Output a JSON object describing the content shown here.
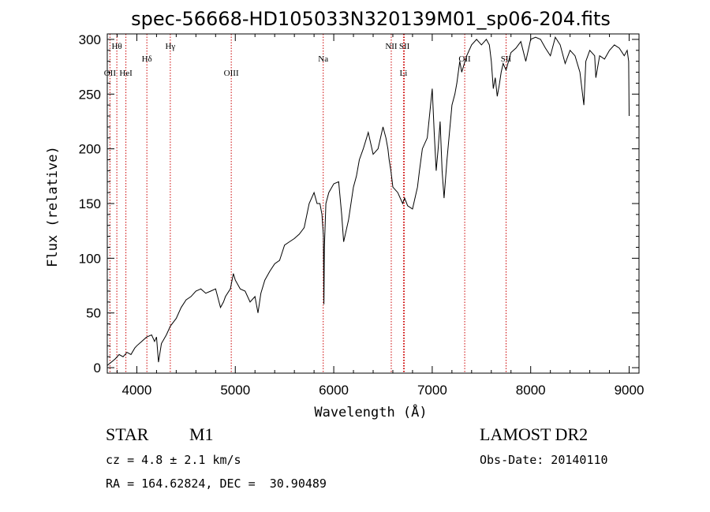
{
  "chart_data": {
    "type": "line",
    "title": "spec-56668-HD105033N320139M01_sp06-204.fits",
    "xlabel": "Wavelength (Å)",
    "ylabel": "Flux (relative)",
    "xlim": [
      3700,
      9100
    ],
    "ylim": [
      -5,
      305
    ],
    "xticks": [
      4000,
      5000,
      6000,
      7000,
      8000,
      9000
    ],
    "yticks": [
      0,
      50,
      100,
      150,
      200,
      250,
      300
    ],
    "grid": false,
    "legend": "none",
    "series": [
      {
        "x": [
          3700,
          3740,
          3780,
          3820,
          3860,
          3900,
          3940,
          3980,
          4000,
          4050,
          4100,
          4150,
          4180,
          4200,
          4220,
          4250,
          4300,
          4340,
          4400,
          4450,
          4500,
          4550,
          4600,
          4650,
          4700,
          4750,
          4800,
          4850,
          4880,
          4900,
          4950,
          4980,
          5000,
          5050,
          5100,
          5150,
          5200,
          5230,
          5260,
          5300,
          5350,
          5400,
          5450,
          5500,
          5550,
          5600,
          5650,
          5700,
          5750,
          5800,
          5830,
          5860,
          5880,
          5895,
          5900,
          5905,
          5920,
          5950,
          6000,
          6050,
          6080,
          6100,
          6150,
          6200,
          6230,
          6260,
          6300,
          6350,
          6400,
          6450,
          6500,
          6530,
          6550,
          6563,
          6580,
          6600,
          6650,
          6700,
          6720,
          6750,
          6800,
          6850,
          6870,
          6900,
          6950,
          7000,
          7020,
          7040,
          7060,
          7080,
          7100,
          7120,
          7150,
          7200,
          7230,
          7250,
          7280,
          7300,
          7350,
          7400,
          7450,
          7500,
          7550,
          7580,
          7600,
          7620,
          7640,
          7660,
          7680,
          7700,
          7720,
          7750,
          7800,
          7850,
          7900,
          7950,
          8000,
          8050,
          8100,
          8150,
          8200,
          8250,
          8300,
          8350,
          8400,
          8450,
          8500,
          8540,
          8560,
          8600,
          8650,
          8662,
          8700,
          8750,
          8800,
          8850,
          8900,
          8950,
          8980,
          8995,
          9000
        ],
        "values": [
          2,
          5,
          8,
          12,
          10,
          14,
          12,
          18,
          20,
          24,
          28,
          30,
          24,
          28,
          5,
          22,
          30,
          38,
          45,
          55,
          62,
          65,
          70,
          72,
          68,
          70,
          72,
          55,
          60,
          65,
          72,
          86,
          80,
          72,
          70,
          60,
          65,
          50,
          68,
          80,
          88,
          95,
          98,
          112,
          115,
          118,
          122,
          128,
          150,
          160,
          150,
          150,
          140,
          120,
          58,
          110,
          150,
          160,
          168,
          170,
          140,
          115,
          135,
          165,
          175,
          190,
          200,
          215,
          195,
          200,
          220,
          210,
          200,
          190,
          180,
          165,
          160,
          150,
          155,
          148,
          145,
          165,
          180,
          200,
          210,
          255,
          215,
          180,
          200,
          225,
          180,
          155,
          190,
          240,
          250,
          260,
          280,
          270,
          285,
          295,
          300,
          295,
          300,
          295,
          280,
          255,
          265,
          248,
          258,
          270,
          278,
          272,
          288,
          292,
          298,
          280,
          300,
          302,
          300,
          292,
          285,
          302,
          295,
          278,
          290,
          285,
          270,
          240,
          280,
          290,
          285,
          265,
          285,
          282,
          290,
          295,
          292,
          285,
          290,
          280,
          230
        ]
      }
    ],
    "line_markers": [
      {
        "label": "Hθ",
        "x": 3797,
        "row": 1
      },
      {
        "label": "OII",
        "x": 3727,
        "row": 3
      },
      {
        "label": "HeI",
        "x": 3889,
        "row": 3
      },
      {
        "label": "Hδ",
        "x": 4102,
        "row": 2
      },
      {
        "label": "Hγ",
        "x": 4340,
        "row": 1
      },
      {
        "label": "OIII",
        "x": 4959,
        "row": 3
      },
      {
        "label": "Na",
        "x": 5893,
        "row": 2
      },
      {
        "label": "NII",
        "x": 6584,
        "row": 1
      },
      {
        "label": "SII",
        "x": 6717,
        "row": 1
      },
      {
        "label": "Li",
        "x": 6708,
        "row": 3
      },
      {
        "label": "OII",
        "x": 7330,
        "row": 2
      },
      {
        "label": "SII",
        "x": 7750,
        "row": 2
      }
    ]
  },
  "info": {
    "object_class": "STAR",
    "subclass": "M1",
    "survey": "LAMOST DR2",
    "redshift_line": "cz = 4.8 ± 2.1 km/s",
    "obs_date_line": "Obs-Date: 20140110",
    "coords_line": "RA = 164.62824, DEC =  30.90489"
  },
  "colors": {
    "spectrum": "#000000",
    "marker_line": "#cc0000",
    "axes": "#000000",
    "background": "#ffffff"
  }
}
